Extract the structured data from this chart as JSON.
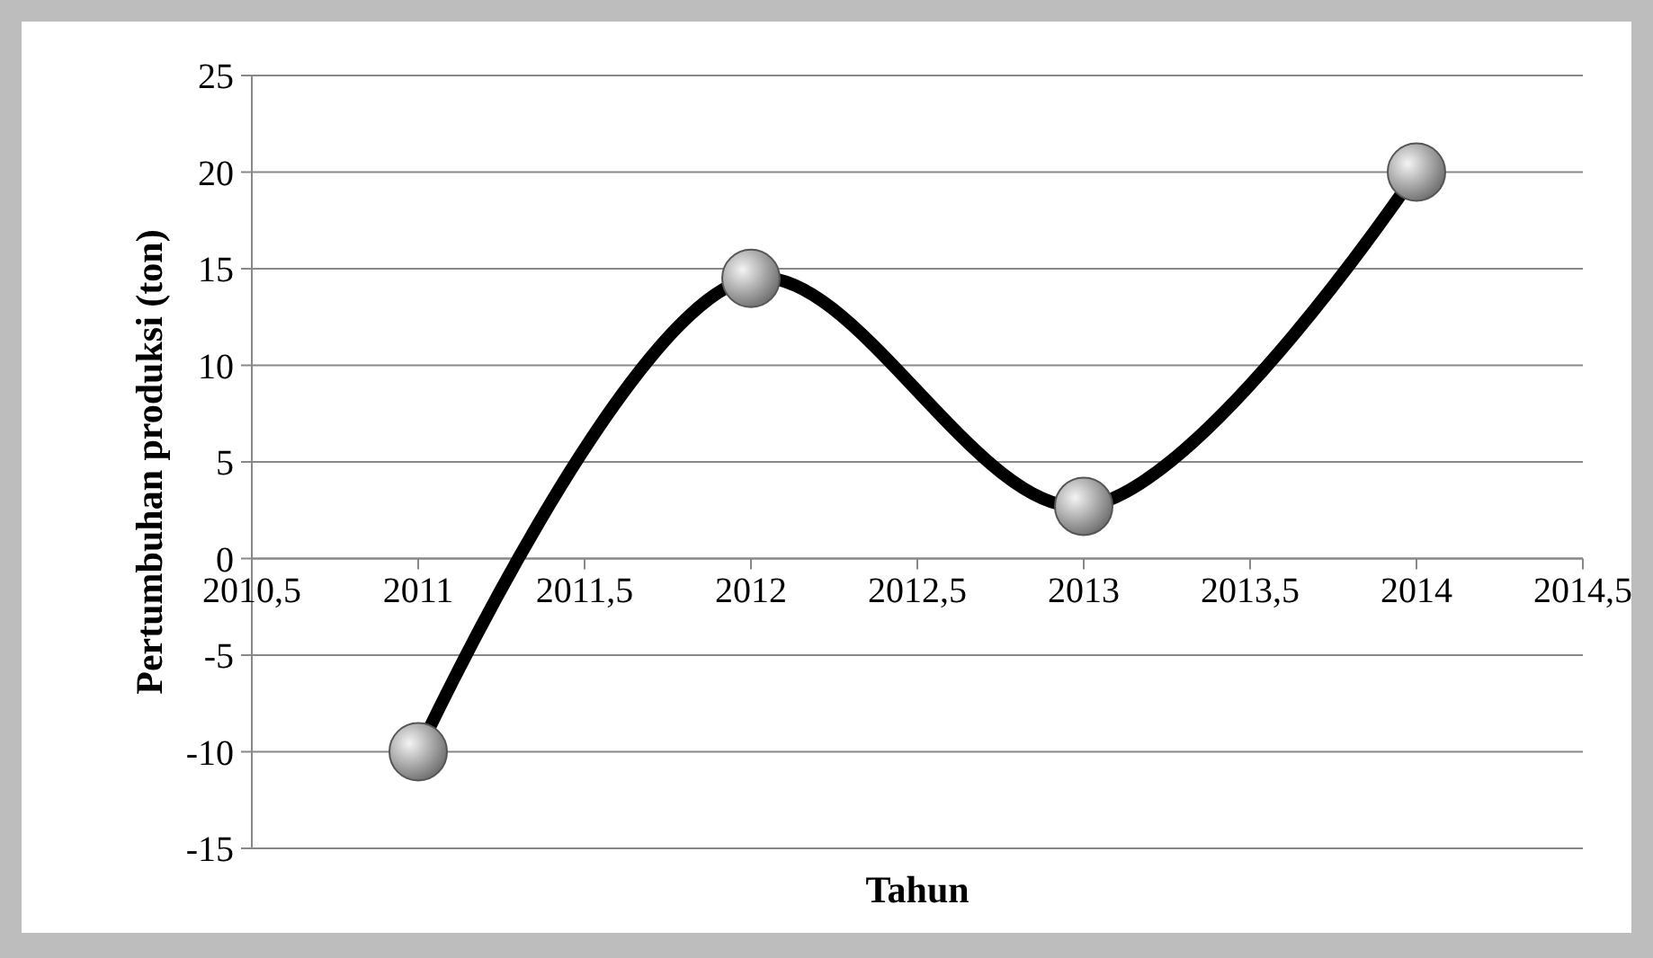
{
  "chart_data": {
    "type": "line",
    "xlabel": "Tahun",
    "ylabel": "Pertumbuhan produksi (ton)",
    "x": [
      2011,
      2012,
      2013,
      2014
    ],
    "series": [
      {
        "color": "#000000",
        "values": [
          -10,
          14.5,
          2.7,
          20
        ]
      }
    ],
    "xlim": [
      2010.5,
      2014.5
    ],
    "xticks": [
      {
        "value": 2010.5,
        "label": "2010,5"
      },
      2011,
      {
        "value": 2011.5,
        "label": "2011,5"
      },
      2012,
      {
        "value": 2012.5,
        "label": "2012,5"
      },
      2013,
      {
        "value": 2013.5,
        "label": "2013,5"
      },
      2014,
      {
        "value": 2014.5,
        "label": "2014,5"
      }
    ],
    "ylim": [
      -15,
      25
    ],
    "yticks": [
      -15,
      -10,
      -5,
      0,
      5,
      10,
      15,
      20,
      25
    ],
    "grid": "y",
    "marker": "circle",
    "line_style": "solid"
  }
}
